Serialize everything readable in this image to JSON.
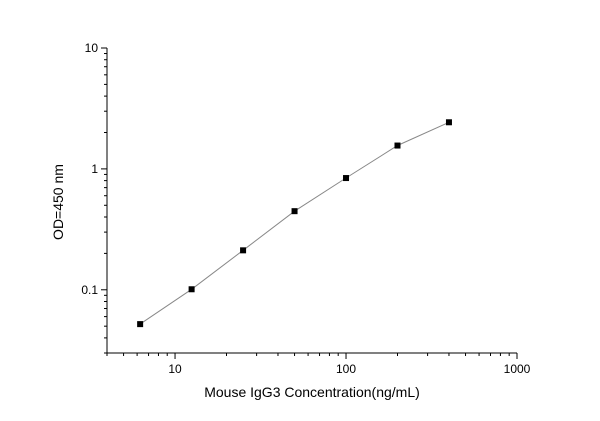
{
  "chart_data": {
    "type": "scatter",
    "xlabel": "Mouse IgG3  Concentration(ng/mL)",
    "ylabel": "OD=450 nm",
    "xscale": "log",
    "yscale": "log",
    "xlim": [
      4,
      1000
    ],
    "ylim": [
      0.03,
      10
    ],
    "x_ticks": [
      10,
      100,
      1000
    ],
    "x_tick_labels": [
      "10",
      "100",
      "1000"
    ],
    "y_ticks": [
      0.1,
      1,
      10
    ],
    "y_tick_labels": [
      "0.1",
      "1",
      "10"
    ],
    "grid": false,
    "legend": "none",
    "marker": "square",
    "marker_color": "#000000",
    "line_color": "#888888",
    "series": [
      {
        "x": [
          6.25,
          12.5,
          25,
          50,
          100,
          200,
          400
        ],
        "y": [
          0.052,
          0.101,
          0.212,
          0.447,
          0.84,
          1.56,
          2.43
        ]
      }
    ]
  }
}
